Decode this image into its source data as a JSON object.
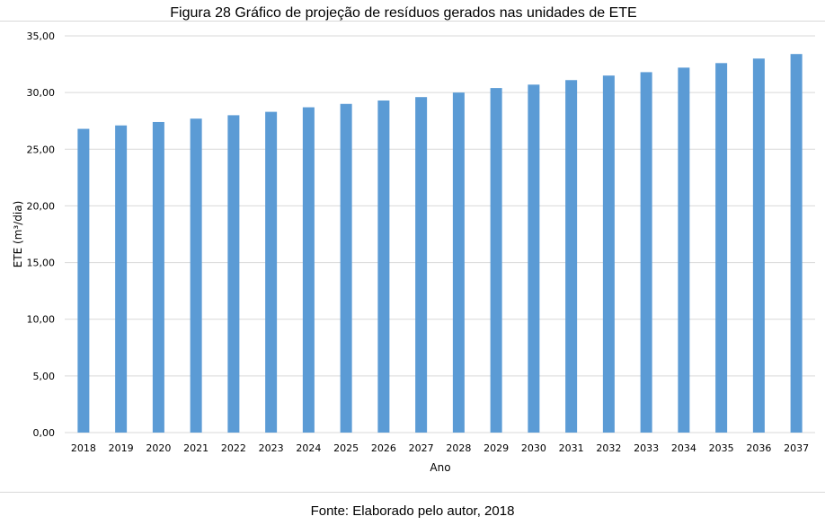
{
  "figure": {
    "caption": "Figura 28 Gráfico de projeção de resíduos gerados nas unidades de ETE",
    "source": "Fonte: Elaborado pelo autor, 2018"
  },
  "colors": {
    "bar": "#5b9bd5",
    "grid": "#d9d9d9"
  },
  "chart_data": {
    "type": "bar",
    "title": "Figura 28 Gráfico de projeção de resíduos gerados nas unidades de ETE",
    "xlabel": "Ano",
    "ylabel": "ETE (m³/dia)",
    "ylim": [
      0,
      35
    ],
    "yticks": [
      "0,00",
      "5,00",
      "10,00",
      "15,00",
      "20,00",
      "25,00",
      "30,00",
      "35,00"
    ],
    "ytick_values": [
      0,
      5,
      10,
      15,
      20,
      25,
      30,
      35
    ],
    "grid": true,
    "legend": "none",
    "categories": [
      "2018",
      "2019",
      "2020",
      "2021",
      "2022",
      "2023",
      "2024",
      "2025",
      "2026",
      "2027",
      "2028",
      "2029",
      "2030",
      "2031",
      "2032",
      "2033",
      "2034",
      "2035",
      "2036",
      "2037"
    ],
    "values": [
      26.8,
      27.1,
      27.4,
      27.7,
      28.0,
      28.3,
      28.7,
      29.0,
      29.3,
      29.6,
      30.0,
      30.4,
      30.7,
      31.1,
      31.5,
      31.8,
      32.2,
      32.6,
      33.0,
      33.4
    ]
  }
}
